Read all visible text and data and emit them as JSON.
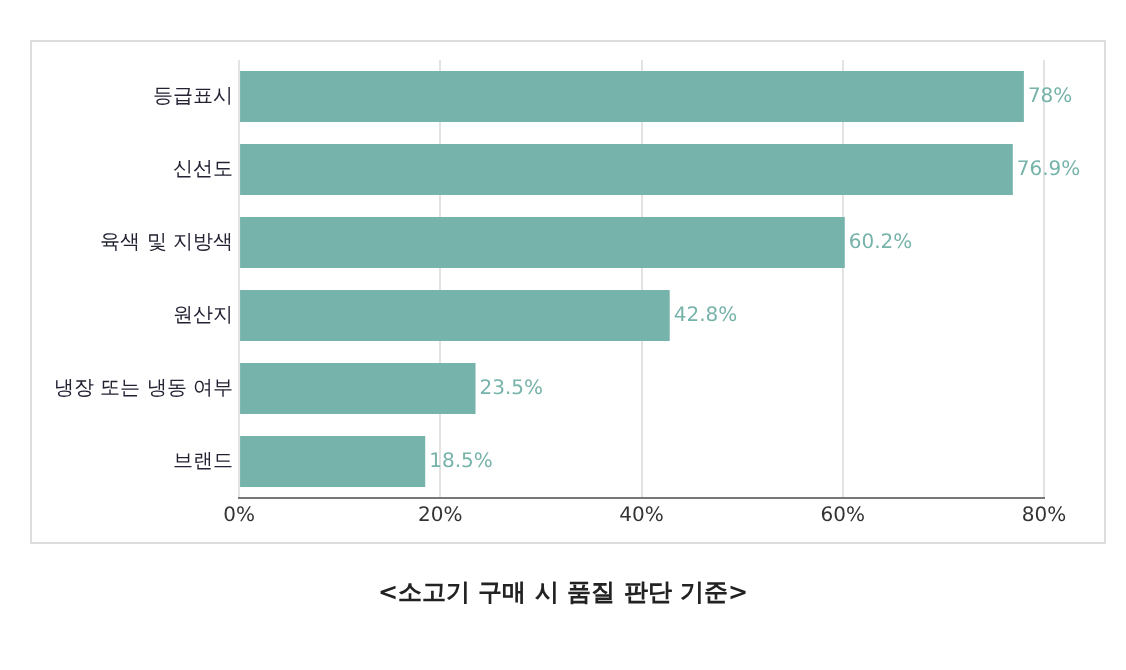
{
  "chart_data": {
    "type": "bar",
    "orientation": "horizontal",
    "title": "<소고기 구매 시 품질 판단 기준>",
    "categories": [
      "등급표시",
      "신선도",
      "육색 및 지방색",
      "원산지",
      "냉장 또는 냉동 여부",
      "브랜드"
    ],
    "values": [
      78,
      76.9,
      60.2,
      42.8,
      23.5,
      18.5
    ],
    "value_labels": [
      "78%",
      "76.9%",
      "60.2%",
      "42.8%",
      "23.5%",
      "18.5%"
    ],
    "color": "#76b3aa",
    "xlim": [
      0,
      80
    ],
    "xticks": [
      {
        "value": 0,
        "label": "0%"
      },
      {
        "value": 20,
        "label": "20%"
      },
      {
        "value": 40,
        "label": "40%"
      },
      {
        "value": 60,
        "label": "60%"
      },
      {
        "value": 80,
        "label": "80%"
      }
    ],
    "grid": "x",
    "legend": false
  }
}
